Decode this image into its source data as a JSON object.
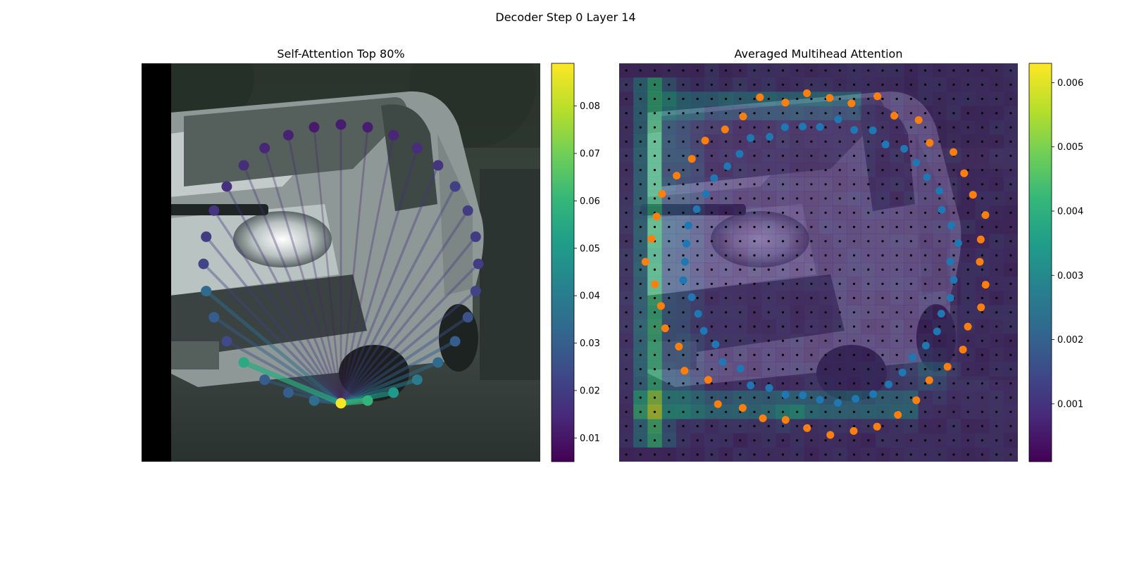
{
  "figure": {
    "title": "Decoder Step 0 Layer 14"
  },
  "colors": {
    "viridis": [
      "#440154",
      "#482878",
      "#3e4989",
      "#31688e",
      "#26828e",
      "#1f9e89",
      "#35b779",
      "#6ece58",
      "#b5de2b",
      "#fde725"
    ],
    "query_points": "#1f77b4",
    "reference_points": "#ff7f0e",
    "grid_dots": "#000000"
  },
  "chart_data": [
    {
      "type": "scatter",
      "title": "Self-Attention Top 80%",
      "background": "photo of a white van on a street (dark left border)",
      "query_index": 0,
      "num_points": 32,
      "point_attention": [
        0.088,
        0.06,
        0.05,
        0.04,
        0.034,
        0.03,
        0.026,
        0.022,
        0.02,
        0.02,
        0.02,
        0.021,
        0.018,
        0.016,
        0.014,
        0.012,
        0.012,
        0.011,
        0.013,
        0.014,
        0.016,
        0.017,
        0.018,
        0.02,
        0.022,
        0.034,
        0.03,
        0.024,
        0.056,
        0.03,
        0.03,
        0.035
      ],
      "colorbar": {
        "min": 0.005,
        "max": 0.089,
        "ticks": [
          "0.01",
          "0.02",
          "0.03",
          "0.04",
          "0.05",
          "0.06",
          "0.07",
          "0.08"
        ],
        "tick_values": [
          0.01,
          0.02,
          0.03,
          0.04,
          0.05,
          0.06,
          0.07,
          0.08
        ]
      }
    },
    {
      "type": "heatmap",
      "title": "Averaged Multihead Attention",
      "background": "photo of the same van, overlaid with attention heatmap",
      "grid": {
        "rows": 28,
        "cols": 28
      },
      "query_points_count": 48,
      "reference_points_count": 46,
      "colorbar": {
        "min": 0.0001,
        "max": 0.0063,
        "ticks": [
          "0.001",
          "0.002",
          "0.003",
          "0.004",
          "0.005",
          "0.006"
        ],
        "tick_values": [
          0.001,
          0.002,
          0.003,
          0.004,
          0.005,
          0.006
        ]
      }
    }
  ]
}
